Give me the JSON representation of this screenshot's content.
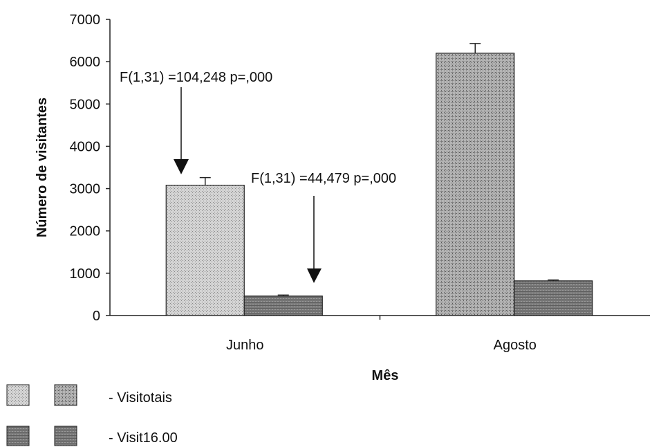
{
  "colors": {
    "visitotais_junho": "#d4d4d4",
    "visitotais_agosto": "#a8a8a8",
    "visit16_junho": "#7a7a7a",
    "visit16_agosto": "#6a6a6a",
    "axis": "#222222",
    "bar_stroke": "#222222"
  },
  "chart_data": {
    "type": "bar",
    "xlabel": "Mês",
    "ylabel": "Número de visitantes",
    "ylim": [
      0,
      7000
    ],
    "yticks": [
      "0",
      "1000",
      "2000",
      "3000",
      "4000",
      "5000",
      "6000",
      "7000"
    ],
    "categories": [
      "Junho",
      "Agosto"
    ],
    "series": [
      {
        "name": "- Visitotais",
        "values": [
          3080,
          6200
        ],
        "errors": [
          180,
          230
        ]
      },
      {
        "name": "- Visit16.00",
        "values": [
          460,
          820
        ],
        "errors": [
          25,
          20
        ]
      }
    ],
    "grid": false,
    "legend_position": "bottom-left",
    "annotations": [
      {
        "text": "F(1,31) =104,248 p=,000",
        "points_to": "Junho - Visitotais"
      },
      {
        "text": "F(1,31) =44,479 p=,000",
        "points_to": "Junho - Visit16.00"
      }
    ]
  }
}
